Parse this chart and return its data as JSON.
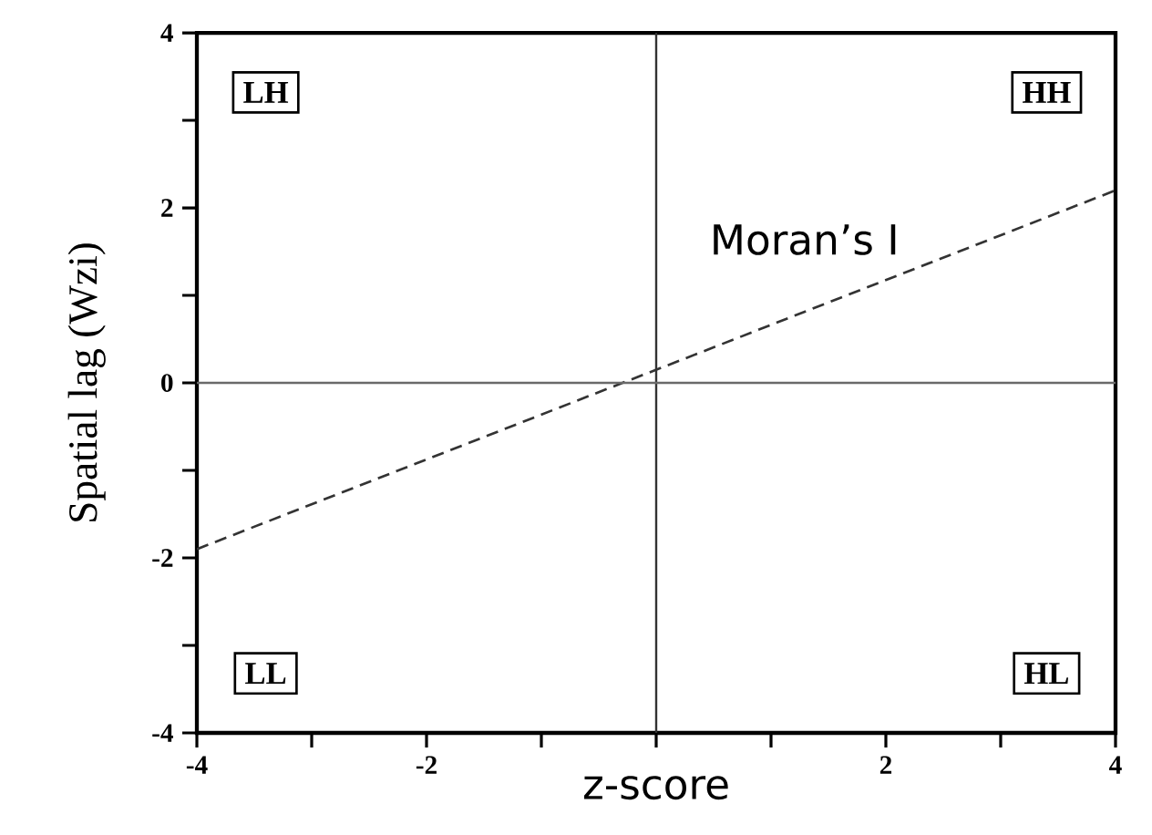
{
  "chart_data": {
    "type": "line",
    "xlabel": "z-score",
    "ylabel": "Spatial lag (Wzi)",
    "x": [
      -4,
      4
    ],
    "series": [
      {
        "name": "Moran’s I",
        "color": "#333333",
        "values": [
          -1.9,
          2.2
        ]
      }
    ],
    "xlim": [
      -4,
      4
    ],
    "ylim": [
      -4,
      4
    ],
    "xticks": [
      -4,
      {
        "value": -3,
        "label": null
      },
      -2,
      {
        "value": -1,
        "label": null
      },
      {
        "value": 0,
        "label": null
      },
      {
        "value": 1,
        "label": null
      },
      2,
      {
        "value": 3,
        "label": null
      },
      4
    ],
    "yticks": [
      -4,
      {
        "value": -3,
        "label": null
      },
      -2,
      {
        "value": -1,
        "label": null
      },
      0,
      {
        "value": 1,
        "label": null
      },
      2,
      {
        "value": 3,
        "label": null
      },
      4
    ],
    "ref_lines": [
      {
        "axis": "x",
        "value": 0,
        "color": "#333333"
      },
      {
        "axis": "y",
        "value": 0,
        "color": "#6a6a6a"
      }
    ],
    "annotations": [
      "LH",
      "HH",
      "LL",
      "HL"
    ],
    "line_style": "dashed",
    "marker": "none",
    "grid": false
  }
}
